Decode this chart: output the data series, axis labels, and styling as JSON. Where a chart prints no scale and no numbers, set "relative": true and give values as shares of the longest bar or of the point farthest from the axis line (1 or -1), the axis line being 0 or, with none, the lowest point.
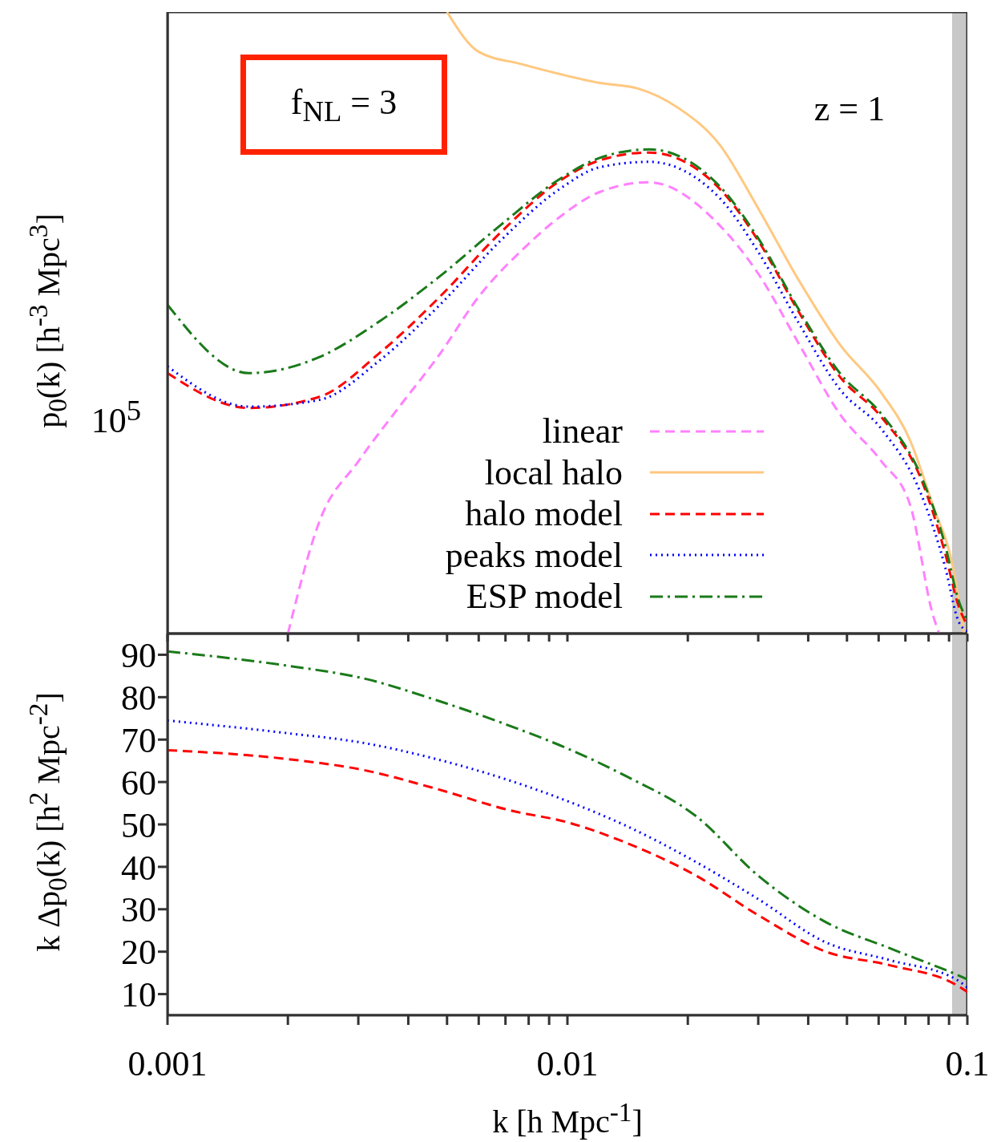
{
  "chart_data": [
    {
      "type": "line",
      "relative": true,
      "ylabel": "p$_{0}$(k)  [h$^{-3}$ Mpc$^{3}$]",
      "annotations": [
        "f$_{NL}$ = 3",
        "z = 1",
        "10$^{5}$"
      ],
      "log": "x",
      "xlim": [
        0.001,
        0.1
      ],
      "xticks": [
        0.001,
        {
          "value": 0.002,
          "label": null
        },
        {
          "value": 0.003,
          "label": null
        },
        {
          "value": 0.004,
          "label": null
        },
        {
          "value": 0.005,
          "label": null
        },
        {
          "value": 0.006,
          "label": null
        },
        {
          "value": 0.007,
          "label": null
        },
        {
          "value": 0.008,
          "label": null
        },
        {
          "value": 0.009,
          "label": null
        },
        0.01,
        {
          "value": 0.02,
          "label": null
        },
        {
          "value": 0.03,
          "label": null
        },
        {
          "value": 0.04,
          "label": null
        },
        {
          "value": 0.05,
          "label": null
        },
        {
          "value": 0.06,
          "label": null
        },
        {
          "value": 0.07,
          "label": null
        },
        {
          "value": 0.08,
          "label": null
        },
        {
          "value": 0.09,
          "label": null
        },
        0.1
      ],
      "tick_labels": false,
      "legend": "bottom right",
      "bands": [
        {
          "axis": "x",
          "from": 0.0916,
          "to": 0.1,
          "color": "#c8c8c8"
        }
      ],
      "x": [
        0.001,
        0.0016,
        0.0024,
        0.0034,
        0.0048,
        0.0068,
        0.0096,
        0.012,
        0.016,
        0.024,
        0.03,
        0.038,
        0.048,
        0.061,
        0.077,
        0.088,
        0.095,
        0.1
      ],
      "series": [
        {
          "name": "linear",
          "color": "#ff80ff",
          "line_style": "dashed",
          "x": [
            0.002,
            0.0024,
            0.003,
            0.0038,
            0.0048,
            0.006,
            0.0077,
            0.0096,
            0.012,
            0.016,
            0.024,
            0.03,
            0.038,
            0.048,
            0.061,
            0.072,
            0.082,
            0.085
          ],
          "values": [
            0,
            0.181,
            0.277,
            0.365,
            0.45,
            0.542,
            0.617,
            0.671,
            0.71,
            0.726,
            0.657,
            0.579,
            0.465,
            0.353,
            0.277,
            0.206,
            0.03,
            0
          ]
        },
        {
          "name": "local halo",
          "color": "#ffc880",
          "line_style": "solid",
          "x": [
            0.005,
            0.006,
            0.0077,
            0.0096,
            0.012,
            0.015,
            0.019,
            0.024,
            0.03,
            0.038,
            0.048,
            0.061,
            0.072,
            0.082,
            0.092,
            0.098
          ],
          "values": [
            1,
            0.936,
            0.916,
            0.9,
            0.886,
            0.877,
            0.845,
            0.787,
            0.684,
            0.567,
            0.465,
            0.387,
            0.31,
            0.206,
            0.107,
            0
          ]
        },
        {
          "name": "halo model",
          "color": "#ff0000",
          "line_style": "dashed",
          "values": [
            0.419,
            0.363,
            0.381,
            0.452,
            0.542,
            0.645,
            0.729,
            0.761,
            0.774,
            0.716,
            0.632,
            0.516,
            0.413,
            0.348,
            0.245,
            0.129,
            0.045,
            0.013
          ]
        },
        {
          "name": "peaks model",
          "color": "#0000ff",
          "line_style": "dotted",
          "values": [
            0.43,
            0.365,
            0.376,
            0.44,
            0.529,
            0.632,
            0.716,
            0.75,
            0.759,
            0.701,
            0.614,
            0.498,
            0.393,
            0.329,
            0.221,
            0.107,
            0.02,
            0.004
          ]
        },
        {
          "name": "ESP model",
          "color": "#1a7a1a",
          "line_style": "dashdot",
          "values": [
            0.529,
            0.419,
            0.445,
            0.503,
            0.575,
            0.657,
            0.732,
            0.765,
            0.779,
            0.72,
            0.636,
            0.52,
            0.419,
            0.353,
            0.25,
            0.142,
            0.054,
            0.02
          ]
        }
      ]
    },
    {
      "type": "line",
      "xlabel": "k  [h Mpc$^{-1}$]",
      "ylabel": "k Δp$_{0}$(k)  [h$^{2}$ Mpc$^{-2}$]",
      "log": "x",
      "xlim": [
        0.001,
        0.1
      ],
      "ylim": [
        5,
        95
      ],
      "xticks": [
        0.001,
        {
          "value": 0.002,
          "label": null
        },
        {
          "value": 0.003,
          "label": null
        },
        {
          "value": 0.004,
          "label": null
        },
        {
          "value": 0.005,
          "label": null
        },
        {
          "value": 0.006,
          "label": null
        },
        {
          "value": 0.007,
          "label": null
        },
        {
          "value": 0.008,
          "label": null
        },
        {
          "value": 0.009,
          "label": null
        },
        0.01,
        {
          "value": 0.02,
          "label": null
        },
        {
          "value": 0.03,
          "label": null
        },
        {
          "value": 0.04,
          "label": null
        },
        {
          "value": 0.05,
          "label": null
        },
        {
          "value": 0.06,
          "label": null
        },
        {
          "value": 0.07,
          "label": null
        },
        {
          "value": 0.08,
          "label": null
        },
        {
          "value": 0.09,
          "label": null
        },
        0.1
      ],
      "yticks": [
        10,
        20,
        30,
        40,
        50,
        60,
        70,
        80,
        90
      ],
      "bands": [
        {
          "axis": "x",
          "from": 0.0916,
          "to": 0.1,
          "color": "#c8c8c8"
        }
      ],
      "x": [
        0.001,
        0.002,
        0.0031,
        0.0047,
        0.0072,
        0.01,
        0.014,
        0.021,
        0.03,
        0.044,
        0.064,
        0.094,
        0.1
      ],
      "series": [
        {
          "color": "#ff0000",
          "line_style": "dashed",
          "values": [
            67.5,
            65.4,
            62.8,
            58.4,
            53.3,
            50.5,
            45.7,
            37.9,
            28.6,
            20.1,
            16.8,
            12.1,
            10.5
          ]
        },
        {
          "color": "#0000ff",
          "line_style": "dotted",
          "values": [
            74.5,
            71.5,
            69.2,
            65.4,
            60.3,
            55.5,
            49.7,
            41.1,
            32.4,
            22.3,
            18,
            13.4,
            11.5
          ]
        },
        {
          "color": "#1a7a1a",
          "line_style": "dashdot",
          "values": [
            90.8,
            87.4,
            84.4,
            79.3,
            73.2,
            67.9,
            61.4,
            51.9,
            37.9,
            27.1,
            20.8,
            14.6,
            13.5
          ]
        }
      ]
    }
  ]
}
